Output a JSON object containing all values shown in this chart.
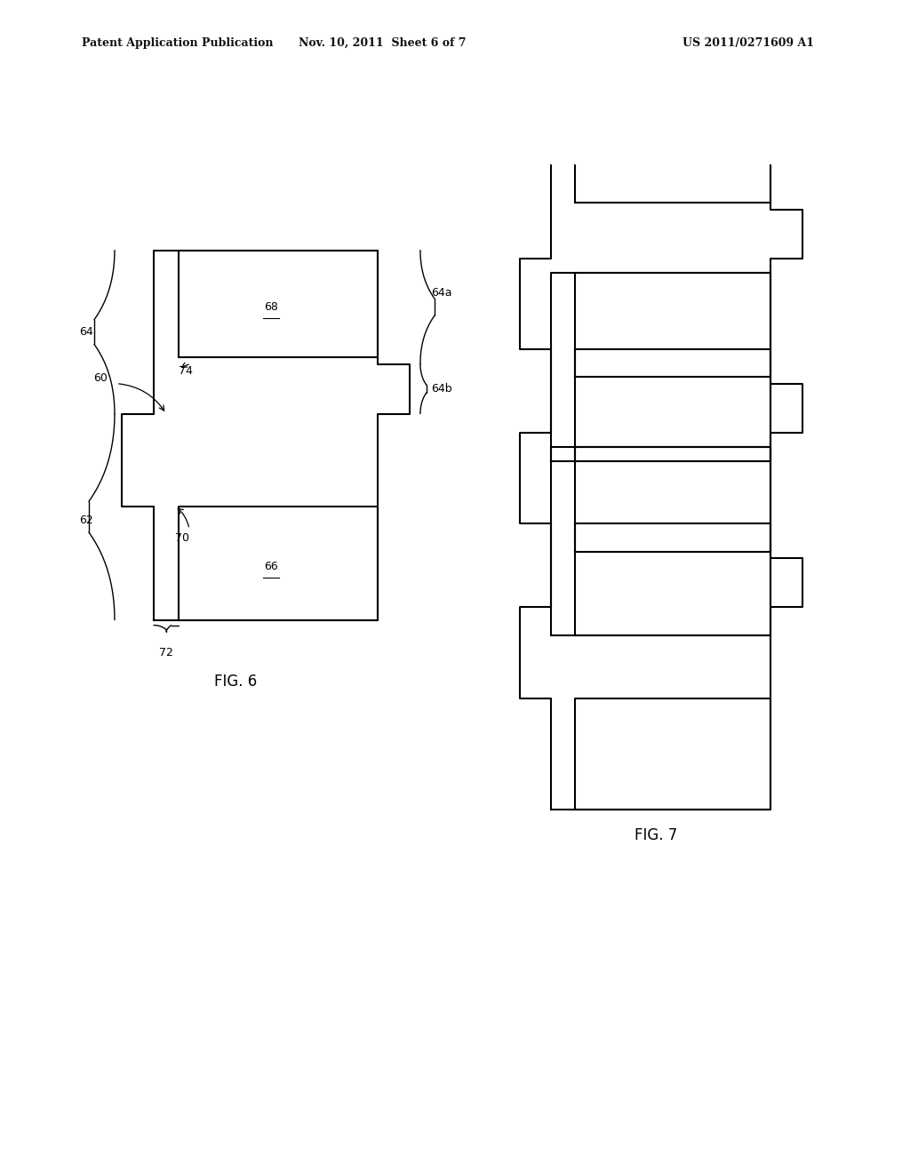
{
  "header_left": "Patent Application Publication",
  "header_mid": "Nov. 10, 2011  Sheet 6 of 7",
  "header_right": "US 2011/0271609 A1",
  "fig6_label": "FIG. 6",
  "fig7_label": "FIG. 7",
  "bg_color": "#ffffff",
  "line_color": "#000000",
  "line_width": 1.5
}
